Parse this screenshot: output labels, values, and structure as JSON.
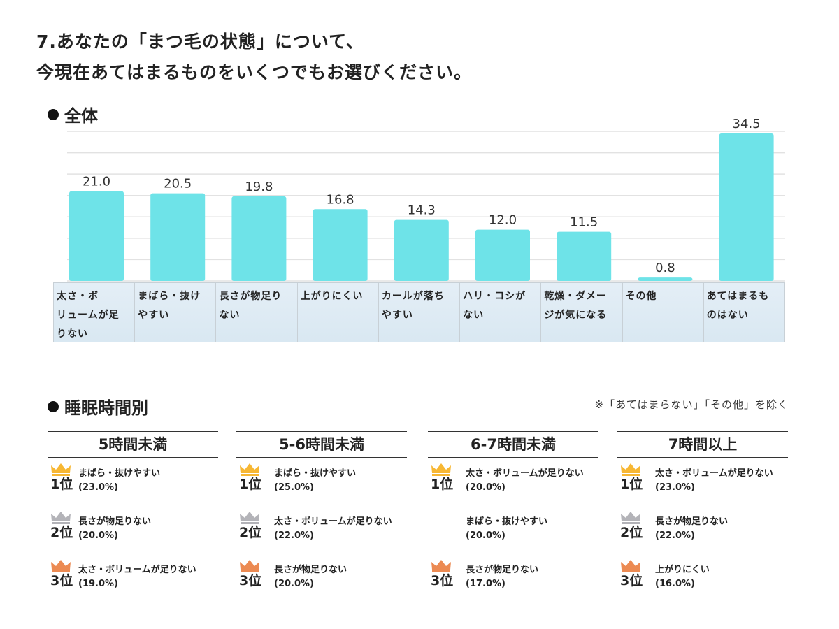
{
  "title_line1": "7.あなたの「まつ毛の状態」について、",
  "title_line2": "今現在あてはまるものをいくつでもお選びください。",
  "overall_heading": "全体",
  "sleep_heading": "睡眠時間別",
  "note": "※「あてはまらない」「その他」を除く",
  "colors": {
    "bar": "#6ee3e8",
    "crown_gold": "#f7b733",
    "crown_silver": "#b3b3b8",
    "crown_bronze": "#ec8a52"
  },
  "chart_data": {
    "type": "bar",
    "categories": [
      "太さ・ボ\nリュームが足\nりない",
      "まばら・抜け\nやすい",
      "長さが物足り\nない",
      "上がりにくい",
      "カールが落ち\nやすい",
      "ハリ・コシが\nない",
      "乾燥・ダメー\nジが気になる",
      "その他",
      "あてはまるも\nのはない"
    ],
    "values": [
      21.0,
      20.5,
      19.8,
      16.8,
      14.3,
      12.0,
      11.5,
      0.8,
      34.5
    ],
    "value_labels": [
      "21.0",
      "20.5",
      "19.8",
      "16.8",
      "14.3",
      "12.0",
      "11.5",
      "0.8",
      "34.5"
    ],
    "ylim": [
      0,
      35
    ],
    "grid": true
  },
  "groups": [
    {
      "title": "5時間未満",
      "ranks": [
        {
          "rank": "1位",
          "medal": "gold",
          "text": "まばら・抜けやすい",
          "pct": "(23.0%)"
        },
        {
          "rank": "2位",
          "medal": "silver",
          "text": "長さが物足りない",
          "pct": "(20.0%)"
        },
        {
          "rank": "3位",
          "medal": "bronze",
          "text": "太さ・ボリュームが足りない",
          "pct": "(19.0%)"
        }
      ]
    },
    {
      "title": "5-6時間未満",
      "ranks": [
        {
          "rank": "1位",
          "medal": "gold",
          "text": "まばら・抜けやすい",
          "pct": "(25.0%)"
        },
        {
          "rank": "2位",
          "medal": "silver",
          "text": "太さ・ボリュームが足りない",
          "pct": "(22.0%)"
        },
        {
          "rank": "3位",
          "medal": "bronze",
          "text": "長さが物足りない",
          "pct": "(20.0%)"
        }
      ]
    },
    {
      "title": "6-7時間未満",
      "ranks": [
        {
          "rank": "1位",
          "medal": "gold",
          "text": "太さ・ボリュームが足りない",
          "pct": "(20.0%)"
        },
        {
          "rank": "",
          "medal": "",
          "text": "まばら・抜けやすい",
          "pct": "(20.0%)"
        },
        {
          "rank": "3位",
          "medal": "bronze",
          "text": "長さが物足りない",
          "pct": "(17.0%)"
        }
      ]
    },
    {
      "title": "7時間以上",
      "ranks": [
        {
          "rank": "1位",
          "medal": "gold",
          "text": "太さ・ボリュームが足りない",
          "pct": "(23.0%)"
        },
        {
          "rank": "2位",
          "medal": "silver",
          "text": "長さが物足りない",
          "pct": "(22.0%)"
        },
        {
          "rank": "3位",
          "medal": "bronze",
          "text": "上がりにくい",
          "pct": "(16.0%)"
        }
      ]
    }
  ]
}
